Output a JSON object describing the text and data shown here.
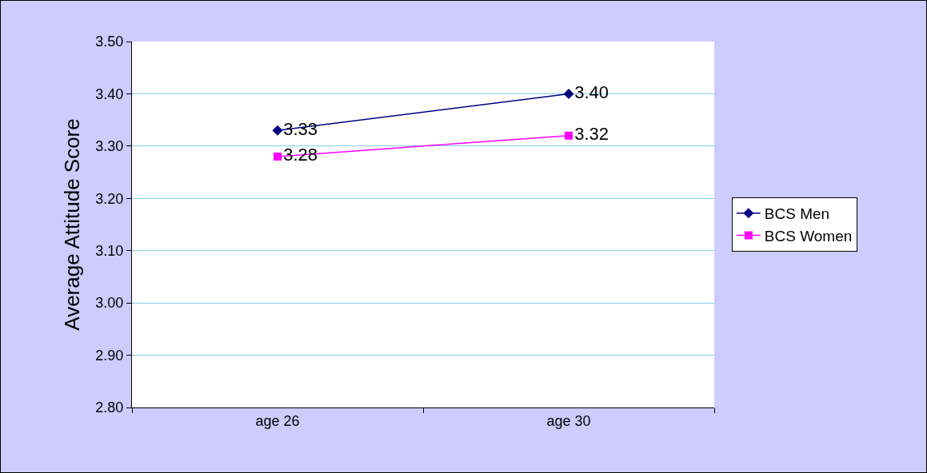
{
  "chart_data": {
    "type": "line",
    "ylabel": "Average Attitude Score",
    "categories": [
      "age 26",
      "age 30"
    ],
    "series": [
      {
        "name": "BCS Men",
        "color": "#000080",
        "marker": "diamond",
        "values": [
          3.33,
          3.4
        ],
        "value_labels": [
          "3.33",
          "3.40"
        ]
      },
      {
        "name": "BCS Women",
        "color": "#ff00ff",
        "marker": "square",
        "values": [
          3.28,
          3.32
        ],
        "value_labels": [
          "3.28",
          "3.32"
        ]
      }
    ],
    "ylim": [
      2.8,
      3.5
    ],
    "yticks": [
      {
        "value": 2.8,
        "label": "2.80"
      },
      {
        "value": 2.9,
        "label": "2.90"
      },
      {
        "value": 3.0,
        "label": "3.00"
      },
      {
        "value": 3.1,
        "label": "3.10"
      },
      {
        "value": 3.2,
        "label": "3.20"
      },
      {
        "value": 3.3,
        "label": "3.30"
      },
      {
        "value": 3.4,
        "label": "3.40"
      },
      {
        "value": 3.5,
        "label": "3.50"
      }
    ],
    "grid": "y",
    "legend": "right",
    "line_style": "solid"
  }
}
